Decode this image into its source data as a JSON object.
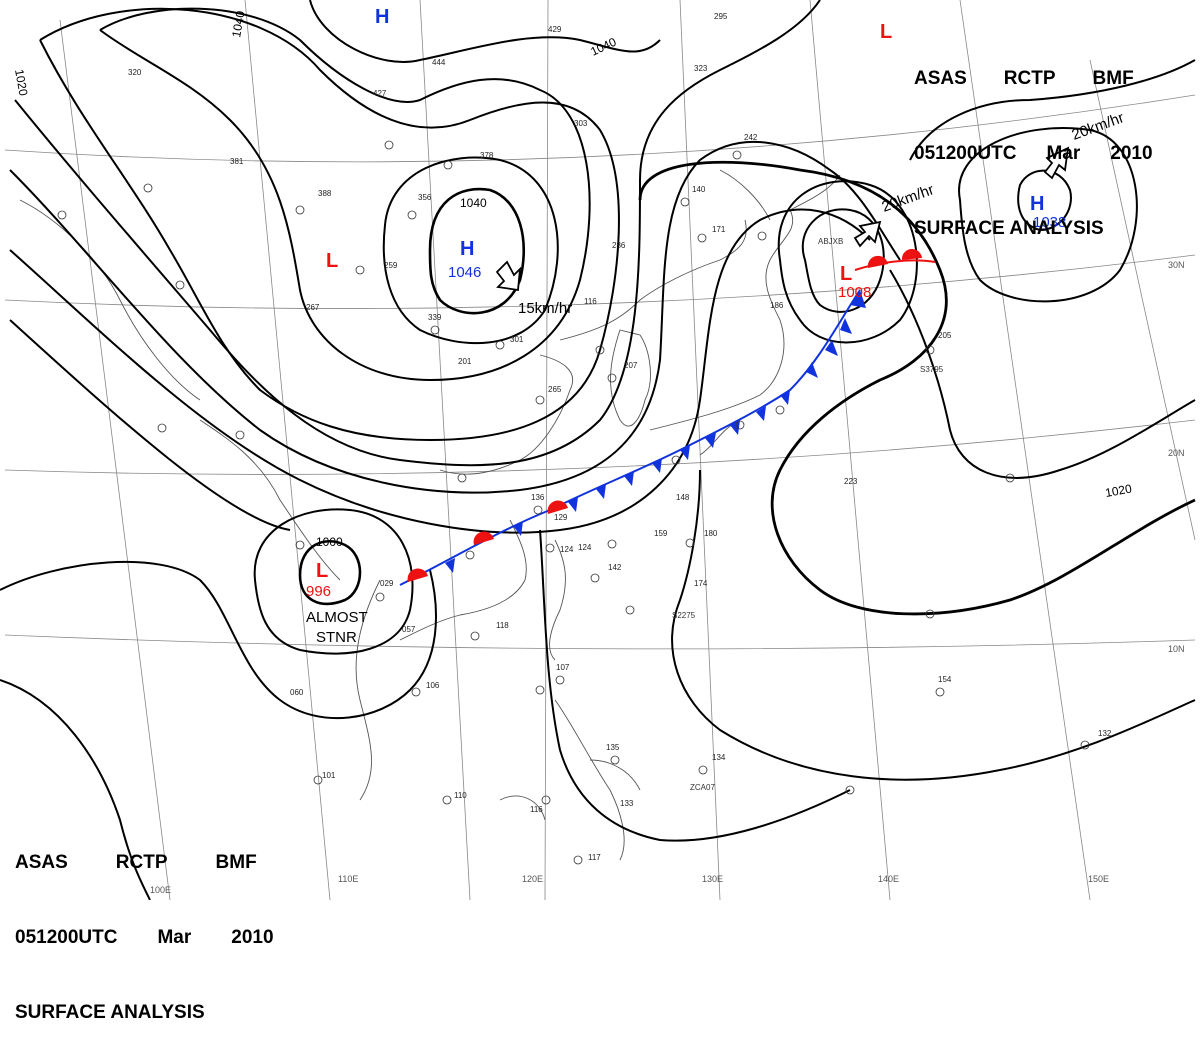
{
  "header": {
    "line1": [
      "ASAS",
      "RCTP",
      "BMF"
    ],
    "line2": [
      "051200UTC",
      "Mar",
      "2010"
    ],
    "line3": "SURFACE ANALYSIS"
  },
  "colors": {
    "high": "#1133dd",
    "low": "#ee1111",
    "isobar": "#000000",
    "coast": "#555555",
    "grid": "#888888",
    "cold_front": "#1133dd",
    "warm_front": "#ee1111"
  },
  "pressure_systems": [
    {
      "type": "H",
      "value": "",
      "id": "h-north"
    },
    {
      "type": "H",
      "value": "1046",
      "id": "h-center",
      "motion": "15km/hr"
    },
    {
      "type": "H",
      "value": "1038",
      "id": "h-east",
      "motion": "20km/hr"
    },
    {
      "type": "L",
      "value": "",
      "id": "l-west"
    },
    {
      "type": "L",
      "value": "1008",
      "id": "l-japan",
      "motion": "20km/hr"
    },
    {
      "type": "L",
      "value": "996",
      "id": "l-indochina",
      "motion": "ALMOST STNR"
    }
  ],
  "isobar_labels": [
    "1040",
    "1040",
    "1040",
    "1020",
    "1000",
    "1020"
  ],
  "labels": {
    "almost": "ALMOST",
    "stnr": "STNR",
    "abjxb": "ABJXB"
  },
  "lon_labels": [
    "100E",
    "110E",
    "120E",
    "130E",
    "140E",
    "150E"
  ],
  "lat_labels": [
    "30N",
    "20N",
    "10N"
  ],
  "station_plots": [
    "429",
    "444",
    "320",
    "427",
    "303",
    "378",
    "381",
    "388",
    "356",
    "286",
    "259",
    "267",
    "339",
    "301",
    "201",
    "186",
    "171",
    "140",
    "116",
    "265",
    "207",
    "136",
    "124",
    "142",
    "118",
    "106",
    "060",
    "101",
    "110",
    "116",
    "107",
    "135",
    "133",
    "134",
    "180",
    "174",
    "148",
    "159",
    "223",
    "205",
    "154",
    "132",
    "242",
    "295",
    "323",
    "057",
    "029",
    "117",
    "124",
    "129"
  ],
  "ship_obs": [
    "S3795",
    "S2275",
    "ZCA07"
  ]
}
